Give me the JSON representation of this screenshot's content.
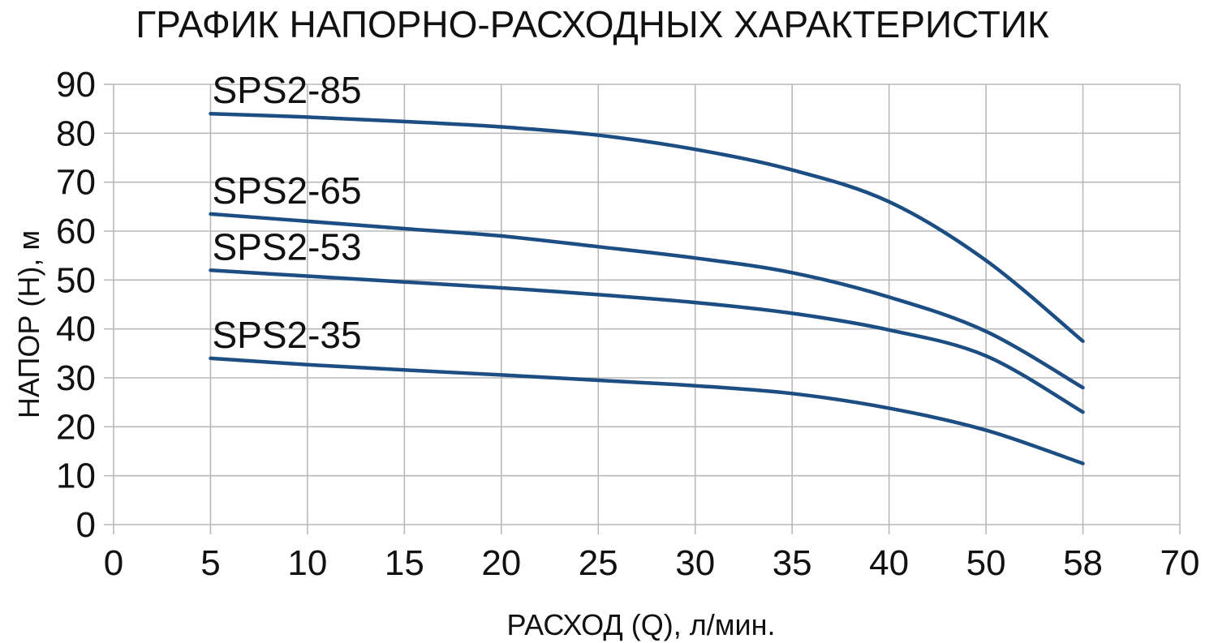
{
  "chart_data": {
    "type": "line",
    "title": "ГРАФИК НАПОРНО-РАСХОДНЫХ ХАРАКТЕРИСТИК",
    "xlabel": "РАСХОД (Q), л/мин.",
    "ylabel": "НАПОР (H), м",
    "categories": [
      "0",
      "5",
      "10",
      "15",
      "20",
      "25",
      "30",
      "35",
      "40",
      "50",
      "58",
      "70"
    ],
    "axis_note": "x is a category axis: labels are non-linear numbers at equal spacing",
    "ylim": [
      0,
      90
    ],
    "y_ticks": [
      0,
      10,
      20,
      30,
      40,
      50,
      60,
      70,
      80,
      90
    ],
    "grid": true,
    "legend_position": "inline labels above each curve start",
    "series": [
      {
        "name": "SPS2-85",
        "values": [
          null,
          84,
          83.3,
          82.4,
          81.3,
          79.6,
          76.7,
          72.5,
          66,
          54,
          37.5,
          null
        ]
      },
      {
        "name": "SPS2-65",
        "values": [
          null,
          63.5,
          62,
          60.5,
          59,
          56.8,
          54.5,
          51.5,
          46.5,
          39.5,
          28,
          null
        ]
      },
      {
        "name": "SPS2-53",
        "values": [
          null,
          52,
          50.8,
          49.6,
          48.4,
          47,
          45.4,
          43.2,
          39.8,
          34.5,
          23,
          null
        ]
      },
      {
        "name": "SPS2-35",
        "values": [
          null,
          34,
          32.7,
          31.6,
          30.6,
          29.5,
          28.4,
          26.8,
          23.8,
          19.3,
          12.5,
          null
        ]
      }
    ],
    "colors": {
      "line": "#1C4E84",
      "grid": "#b9b9b9",
      "text": "#111111",
      "background": "#ffffff"
    }
  }
}
